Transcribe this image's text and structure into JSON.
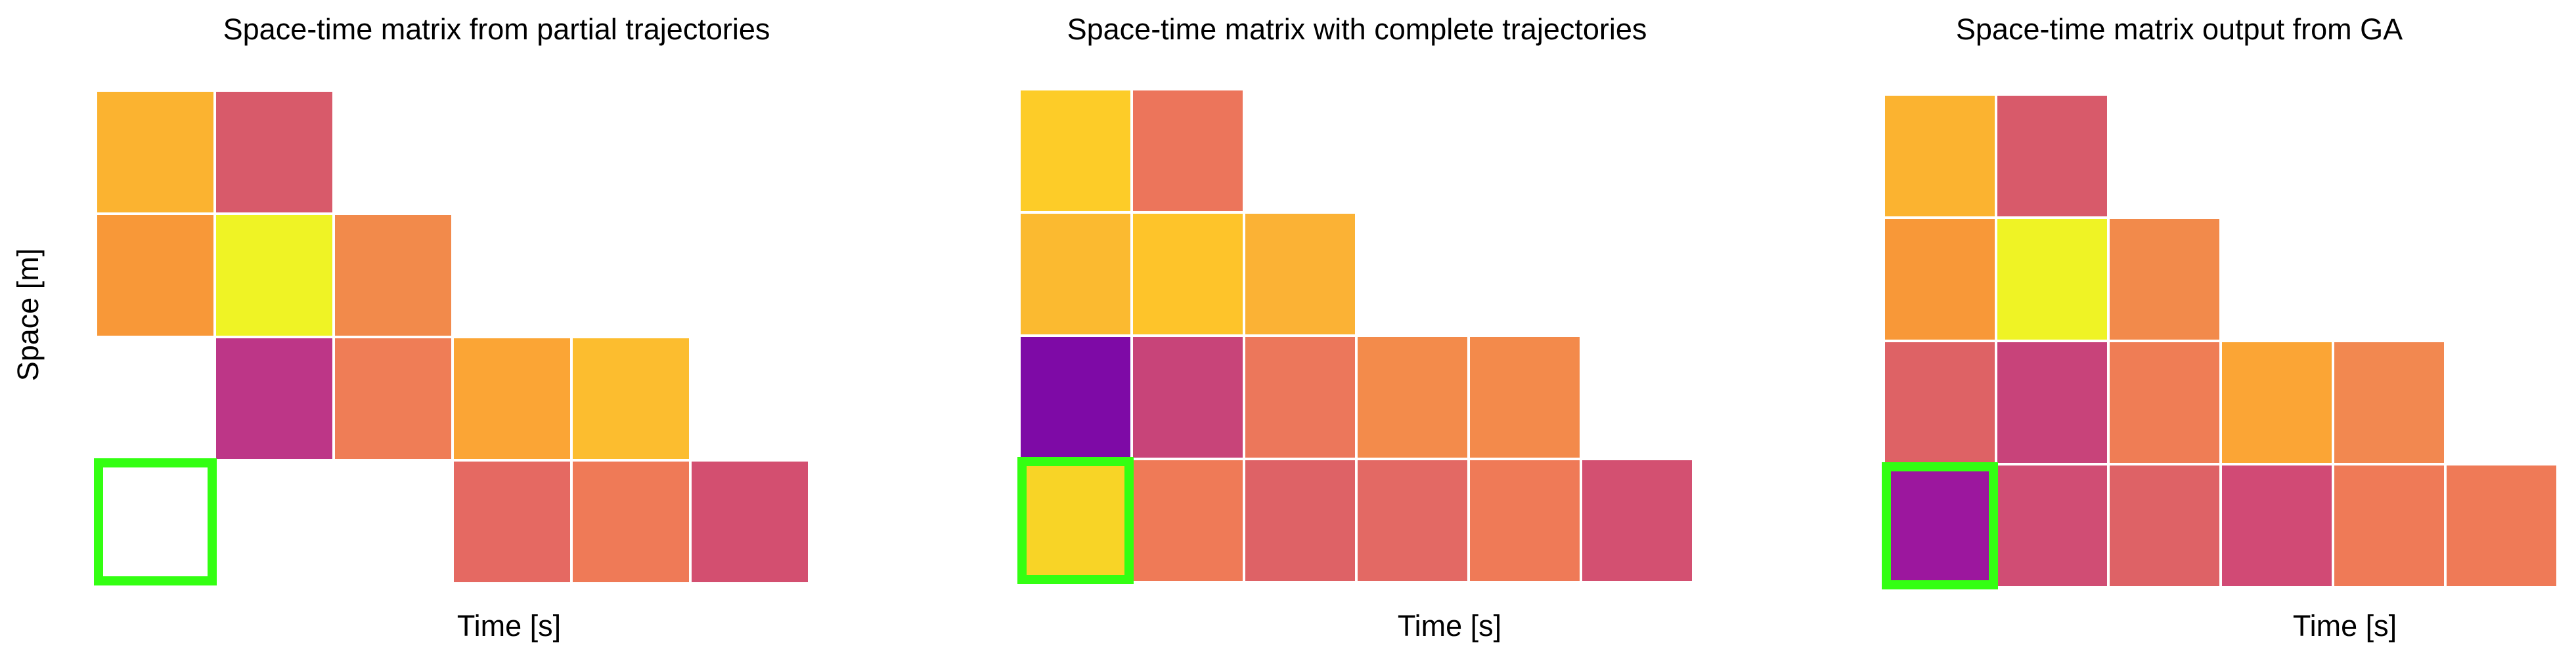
{
  "chart_data": [
    {
      "type": "heatmap",
      "title": "Space-time matrix from partial trajectories",
      "xlabel": "Time [s]",
      "ylabel": "Space [m]",
      "colormap": "plasma",
      "rows": 4,
      "cols": 6,
      "grid": false,
      "cells": [
        {
          "row": 0,
          "col": 0,
          "color": "#fbb330"
        },
        {
          "row": 0,
          "col": 1,
          "color": "#d85a6a"
        },
        {
          "row": 1,
          "col": 0,
          "color": "#f89838"
        },
        {
          "row": 1,
          "col": 1,
          "color": "#eff325"
        },
        {
          "row": 1,
          "col": 2,
          "color": "#f28a4b"
        },
        {
          "row": 2,
          "col": 1,
          "color": "#bd3687"
        },
        {
          "row": 2,
          "col": 2,
          "color": "#ef7d56"
        },
        {
          "row": 2,
          "col": 3,
          "color": "#fba535"
        },
        {
          "row": 2,
          "col": 4,
          "color": "#fcbd2f"
        },
        {
          "row": 3,
          "col": 3,
          "color": "#e56962"
        },
        {
          "row": 3,
          "col": 4,
          "color": "#ef7a57"
        },
        {
          "row": 3,
          "col": 5,
          "color": "#d34f70"
        }
      ],
      "highlight": {
        "row": 3,
        "col": 0,
        "color": "#33ff12"
      }
    },
    {
      "type": "heatmap",
      "title": "Space-time matrix with complete trajectories",
      "xlabel": "Time [s]",
      "ylabel": "",
      "colormap": "plasma",
      "rows": 4,
      "cols": 6,
      "grid": false,
      "cells": [
        {
          "row": 0,
          "col": 0,
          "color": "#fdcc28"
        },
        {
          "row": 0,
          "col": 1,
          "color": "#ec755b"
        },
        {
          "row": 1,
          "col": 0,
          "color": "#fbba30"
        },
        {
          "row": 1,
          "col": 1,
          "color": "#fec42a"
        },
        {
          "row": 1,
          "col": 2,
          "color": "#fbb235"
        },
        {
          "row": 2,
          "col": 0,
          "color": "#7e0aa6"
        },
        {
          "row": 2,
          "col": 1,
          "color": "#c84479"
        },
        {
          "row": 2,
          "col": 2,
          "color": "#ec775b"
        },
        {
          "row": 2,
          "col": 3,
          "color": "#f38b4b"
        },
        {
          "row": 2,
          "col": 4,
          "color": "#f38a4b"
        },
        {
          "row": 3,
          "col": 0,
          "color": "#f8d426"
        },
        {
          "row": 3,
          "col": 1,
          "color": "#ef7a57"
        },
        {
          "row": 3,
          "col": 2,
          "color": "#de6266"
        },
        {
          "row": 3,
          "col": 3,
          "color": "#e36964"
        },
        {
          "row": 3,
          "col": 4,
          "color": "#ef7a57"
        },
        {
          "row": 3,
          "col": 5,
          "color": "#d35071"
        }
      ],
      "highlight": {
        "row": 3,
        "col": 0,
        "color": "#33ff12"
      }
    },
    {
      "type": "heatmap",
      "title": "Space-time matrix output from GA",
      "xlabel": "Time [s]",
      "ylabel": "",
      "colormap": "plasma",
      "rows": 4,
      "cols": 6,
      "grid": false,
      "cells": [
        {
          "row": 0,
          "col": 0,
          "color": "#fbb330"
        },
        {
          "row": 0,
          "col": 1,
          "color": "#d85a6a"
        },
        {
          "row": 1,
          "col": 0,
          "color": "#f89838"
        },
        {
          "row": 1,
          "col": 1,
          "color": "#eff325"
        },
        {
          "row": 1,
          "col": 2,
          "color": "#f28a4b"
        },
        {
          "row": 2,
          "col": 0,
          "color": "#de6265"
        },
        {
          "row": 2,
          "col": 1,
          "color": "#c8437a"
        },
        {
          "row": 2,
          "col": 2,
          "color": "#ef7d55"
        },
        {
          "row": 2,
          "col": 3,
          "color": "#fba535"
        },
        {
          "row": 2,
          "col": 4,
          "color": "#f28850"
        },
        {
          "row": 3,
          "col": 0,
          "color": "#9c179e"
        },
        {
          "row": 3,
          "col": 1,
          "color": "#d04d74"
        },
        {
          "row": 3,
          "col": 2,
          "color": "#de6266"
        },
        {
          "row": 3,
          "col": 3,
          "color": "#d14a75"
        },
        {
          "row": 3,
          "col": 4,
          "color": "#ef7a57"
        },
        {
          "row": 3,
          "col": 5,
          "color": "#ef7a57"
        }
      ],
      "highlight": {
        "row": 3,
        "col": 0,
        "color": "#33ff12"
      }
    }
  ]
}
